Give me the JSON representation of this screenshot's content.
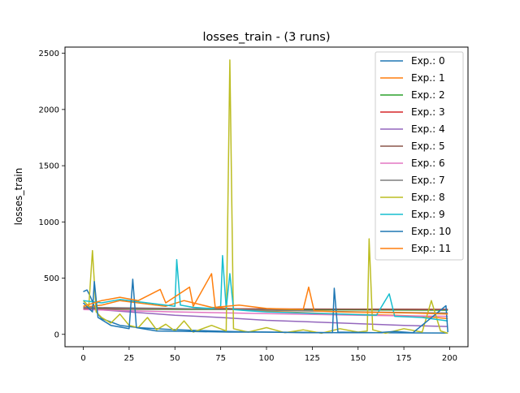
{
  "chart_data": {
    "type": "line",
    "title": "losses_train - (3 runs)",
    "xlabel": "",
    "ylabel": "losses_train",
    "xlim": [
      -10,
      210
    ],
    "ylim": [
      -110,
      2555
    ],
    "xticks": [
      0,
      25,
      50,
      75,
      100,
      125,
      150,
      175,
      200
    ],
    "yticks": [
      0,
      500,
      1000,
      1500,
      2000,
      2500
    ],
    "grid": false,
    "legend_position": "top-right",
    "series": [
      {
        "name": "Exp.: 0",
        "color": "#1f77b4",
        "values": [
          {
            "x": 0,
            "y": 380
          },
          {
            "x": 2,
            "y": 395
          },
          {
            "x": 4,
            "y": 330
          },
          {
            "x": 6,
            "y": 250
          },
          {
            "x": 8,
            "y": 180
          },
          {
            "x": 10,
            "y": 140
          },
          {
            "x": 15,
            "y": 110
          },
          {
            "x": 20,
            "y": 80
          },
          {
            "x": 30,
            "y": 60
          },
          {
            "x": 45,
            "y": 45
          },
          {
            "x": 60,
            "y": 35
          },
          {
            "x": 80,
            "y": 25
          },
          {
            "x": 100,
            "y": 20
          },
          {
            "x": 120,
            "y": 18
          },
          {
            "x": 140,
            "y": 15
          },
          {
            "x": 160,
            "y": 14
          },
          {
            "x": 180,
            "y": 13
          },
          {
            "x": 199,
            "y": 12
          }
        ]
      },
      {
        "name": "Exp.: 1",
        "color": "#ff7f0e",
        "values": [
          {
            "x": 0,
            "y": 240
          },
          {
            "x": 10,
            "y": 260
          },
          {
            "x": 20,
            "y": 300
          },
          {
            "x": 30,
            "y": 280
          },
          {
            "x": 45,
            "y": 250
          },
          {
            "x": 55,
            "y": 300
          },
          {
            "x": 70,
            "y": 240
          },
          {
            "x": 80,
            "y": 230
          },
          {
            "x": 95,
            "y": 210
          },
          {
            "x": 110,
            "y": 200
          },
          {
            "x": 125,
            "y": 190
          },
          {
            "x": 140,
            "y": 180
          },
          {
            "x": 155,
            "y": 175
          },
          {
            "x": 170,
            "y": 170
          },
          {
            "x": 185,
            "y": 160
          },
          {
            "x": 199,
            "y": 140
          }
        ]
      },
      {
        "name": "Exp.: 2",
        "color": "#2ca02c",
        "values": [
          {
            "x": 0,
            "y": 225
          },
          {
            "x": 50,
            "y": 222
          },
          {
            "x": 100,
            "y": 220
          },
          {
            "x": 150,
            "y": 218
          },
          {
            "x": 199,
            "y": 215
          }
        ]
      },
      {
        "name": "Exp.: 3",
        "color": "#d62728",
        "values": [
          {
            "x": 0,
            "y": 230
          },
          {
            "x": 50,
            "y": 228
          },
          {
            "x": 100,
            "y": 226
          },
          {
            "x": 150,
            "y": 224
          },
          {
            "x": 199,
            "y": 222
          }
        ]
      },
      {
        "name": "Exp.: 4",
        "color": "#9467bd",
        "values": [
          {
            "x": 0,
            "y": 230
          },
          {
            "x": 25,
            "y": 200
          },
          {
            "x": 50,
            "y": 170
          },
          {
            "x": 75,
            "y": 150
          },
          {
            "x": 100,
            "y": 125
          },
          {
            "x": 125,
            "y": 110
          },
          {
            "x": 150,
            "y": 95
          },
          {
            "x": 175,
            "y": 80
          },
          {
            "x": 199,
            "y": 70
          }
        ]
      },
      {
        "name": "Exp.: 5",
        "color": "#8c564b",
        "values": [
          {
            "x": 0,
            "y": 228
          },
          {
            "x": 50,
            "y": 226
          },
          {
            "x": 100,
            "y": 225
          },
          {
            "x": 150,
            "y": 223
          },
          {
            "x": 199,
            "y": 221
          }
        ]
      },
      {
        "name": "Exp.: 6",
        "color": "#e377c2",
        "values": [
          {
            "x": 0,
            "y": 220
          },
          {
            "x": 50,
            "y": 200
          },
          {
            "x": 100,
            "y": 185
          },
          {
            "x": 150,
            "y": 170
          },
          {
            "x": 199,
            "y": 160
          }
        ]
      },
      {
        "name": "Exp.: 7",
        "color": "#7f7f7f",
        "values": [
          {
            "x": 0,
            "y": 240
          },
          {
            "x": 50,
            "y": 230
          },
          {
            "x": 100,
            "y": 215
          },
          {
            "x": 150,
            "y": 200
          },
          {
            "x": 199,
            "y": 190
          }
        ]
      },
      {
        "name": "Exp.: 8",
        "color": "#bcbd22",
        "values": [
          {
            "x": 0,
            "y": 300
          },
          {
            "x": 3,
            "y": 250
          },
          {
            "x": 5,
            "y": 745
          },
          {
            "x": 7,
            "y": 200
          },
          {
            "x": 10,
            "y": 150
          },
          {
            "x": 15,
            "y": 100
          },
          {
            "x": 20,
            "y": 180
          },
          {
            "x": 25,
            "y": 80
          },
          {
            "x": 30,
            "y": 60
          },
          {
            "x": 35,
            "y": 150
          },
          {
            "x": 40,
            "y": 40
          },
          {
            "x": 45,
            "y": 90
          },
          {
            "x": 50,
            "y": 30
          },
          {
            "x": 55,
            "y": 120
          },
          {
            "x": 60,
            "y": 20
          },
          {
            "x": 70,
            "y": 80
          },
          {
            "x": 78,
            "y": 30
          },
          {
            "x": 80,
            "y": 2440
          },
          {
            "x": 82,
            "y": 50
          },
          {
            "x": 90,
            "y": 20
          },
          {
            "x": 100,
            "y": 60
          },
          {
            "x": 110,
            "y": 15
          },
          {
            "x": 120,
            "y": 40
          },
          {
            "x": 130,
            "y": 10
          },
          {
            "x": 140,
            "y": 50
          },
          {
            "x": 150,
            "y": 20
          },
          {
            "x": 155,
            "y": 30
          },
          {
            "x": 156,
            "y": 850
          },
          {
            "x": 158,
            "y": 40
          },
          {
            "x": 165,
            "y": 10
          },
          {
            "x": 175,
            "y": 50
          },
          {
            "x": 185,
            "y": 20
          },
          {
            "x": 190,
            "y": 300
          },
          {
            "x": 195,
            "y": 30
          },
          {
            "x": 199,
            "y": 10
          }
        ]
      },
      {
        "name": "Exp.: 9",
        "color": "#17becf",
        "values": [
          {
            "x": 0,
            "y": 300
          },
          {
            "x": 10,
            "y": 280
          },
          {
            "x": 20,
            "y": 310
          },
          {
            "x": 30,
            "y": 290
          },
          {
            "x": 40,
            "y": 270
          },
          {
            "x": 50,
            "y": 250
          },
          {
            "x": 51,
            "y": 665
          },
          {
            "x": 53,
            "y": 260
          },
          {
            "x": 60,
            "y": 240
          },
          {
            "x": 70,
            "y": 230
          },
          {
            "x": 75,
            "y": 250
          },
          {
            "x": 76,
            "y": 700
          },
          {
            "x": 78,
            "y": 230
          },
          {
            "x": 80,
            "y": 540
          },
          {
            "x": 82,
            "y": 220
          },
          {
            "x": 90,
            "y": 210
          },
          {
            "x": 100,
            "y": 200
          },
          {
            "x": 120,
            "y": 190
          },
          {
            "x": 140,
            "y": 180
          },
          {
            "x": 160,
            "y": 170
          },
          {
            "x": 167,
            "y": 360
          },
          {
            "x": 170,
            "y": 160
          },
          {
            "x": 185,
            "y": 150
          },
          {
            "x": 199,
            "y": 120
          }
        ]
      },
      {
        "name": "Exp.: 10",
        "color": "#1f77b4",
        "values": [
          {
            "x": 0,
            "y": 280
          },
          {
            "x": 5,
            "y": 200
          },
          {
            "x": 6,
            "y": 470
          },
          {
            "x": 8,
            "y": 150
          },
          {
            "x": 15,
            "y": 80
          },
          {
            "x": 25,
            "y": 50
          },
          {
            "x": 27,
            "y": 490
          },
          {
            "x": 29,
            "y": 60
          },
          {
            "x": 40,
            "y": 30
          },
          {
            "x": 60,
            "y": 25
          },
          {
            "x": 80,
            "y": 20
          },
          {
            "x": 100,
            "y": 20
          },
          {
            "x": 120,
            "y": 15
          },
          {
            "x": 136,
            "y": 15
          },
          {
            "x": 137,
            "y": 410
          },
          {
            "x": 139,
            "y": 20
          },
          {
            "x": 160,
            "y": 15
          },
          {
            "x": 170,
            "y": 25
          },
          {
            "x": 180,
            "y": 15
          },
          {
            "x": 198,
            "y": 255
          },
          {
            "x": 199,
            "y": 20
          }
        ]
      },
      {
        "name": "Exp.: 11",
        "color": "#ff7f0e",
        "values": [
          {
            "x": 0,
            "y": 250
          },
          {
            "x": 10,
            "y": 300
          },
          {
            "x": 20,
            "y": 330
          },
          {
            "x": 30,
            "y": 300
          },
          {
            "x": 42,
            "y": 400
          },
          {
            "x": 45,
            "y": 280
          },
          {
            "x": 58,
            "y": 420
          },
          {
            "x": 60,
            "y": 250
          },
          {
            "x": 70,
            "y": 540
          },
          {
            "x": 72,
            "y": 240
          },
          {
            "x": 85,
            "y": 260
          },
          {
            "x": 100,
            "y": 230
          },
          {
            "x": 120,
            "y": 220
          },
          {
            "x": 123,
            "y": 420
          },
          {
            "x": 126,
            "y": 210
          },
          {
            "x": 140,
            "y": 200
          },
          {
            "x": 160,
            "y": 195
          },
          {
            "x": 180,
            "y": 190
          },
          {
            "x": 199,
            "y": 180
          }
        ]
      }
    ]
  }
}
